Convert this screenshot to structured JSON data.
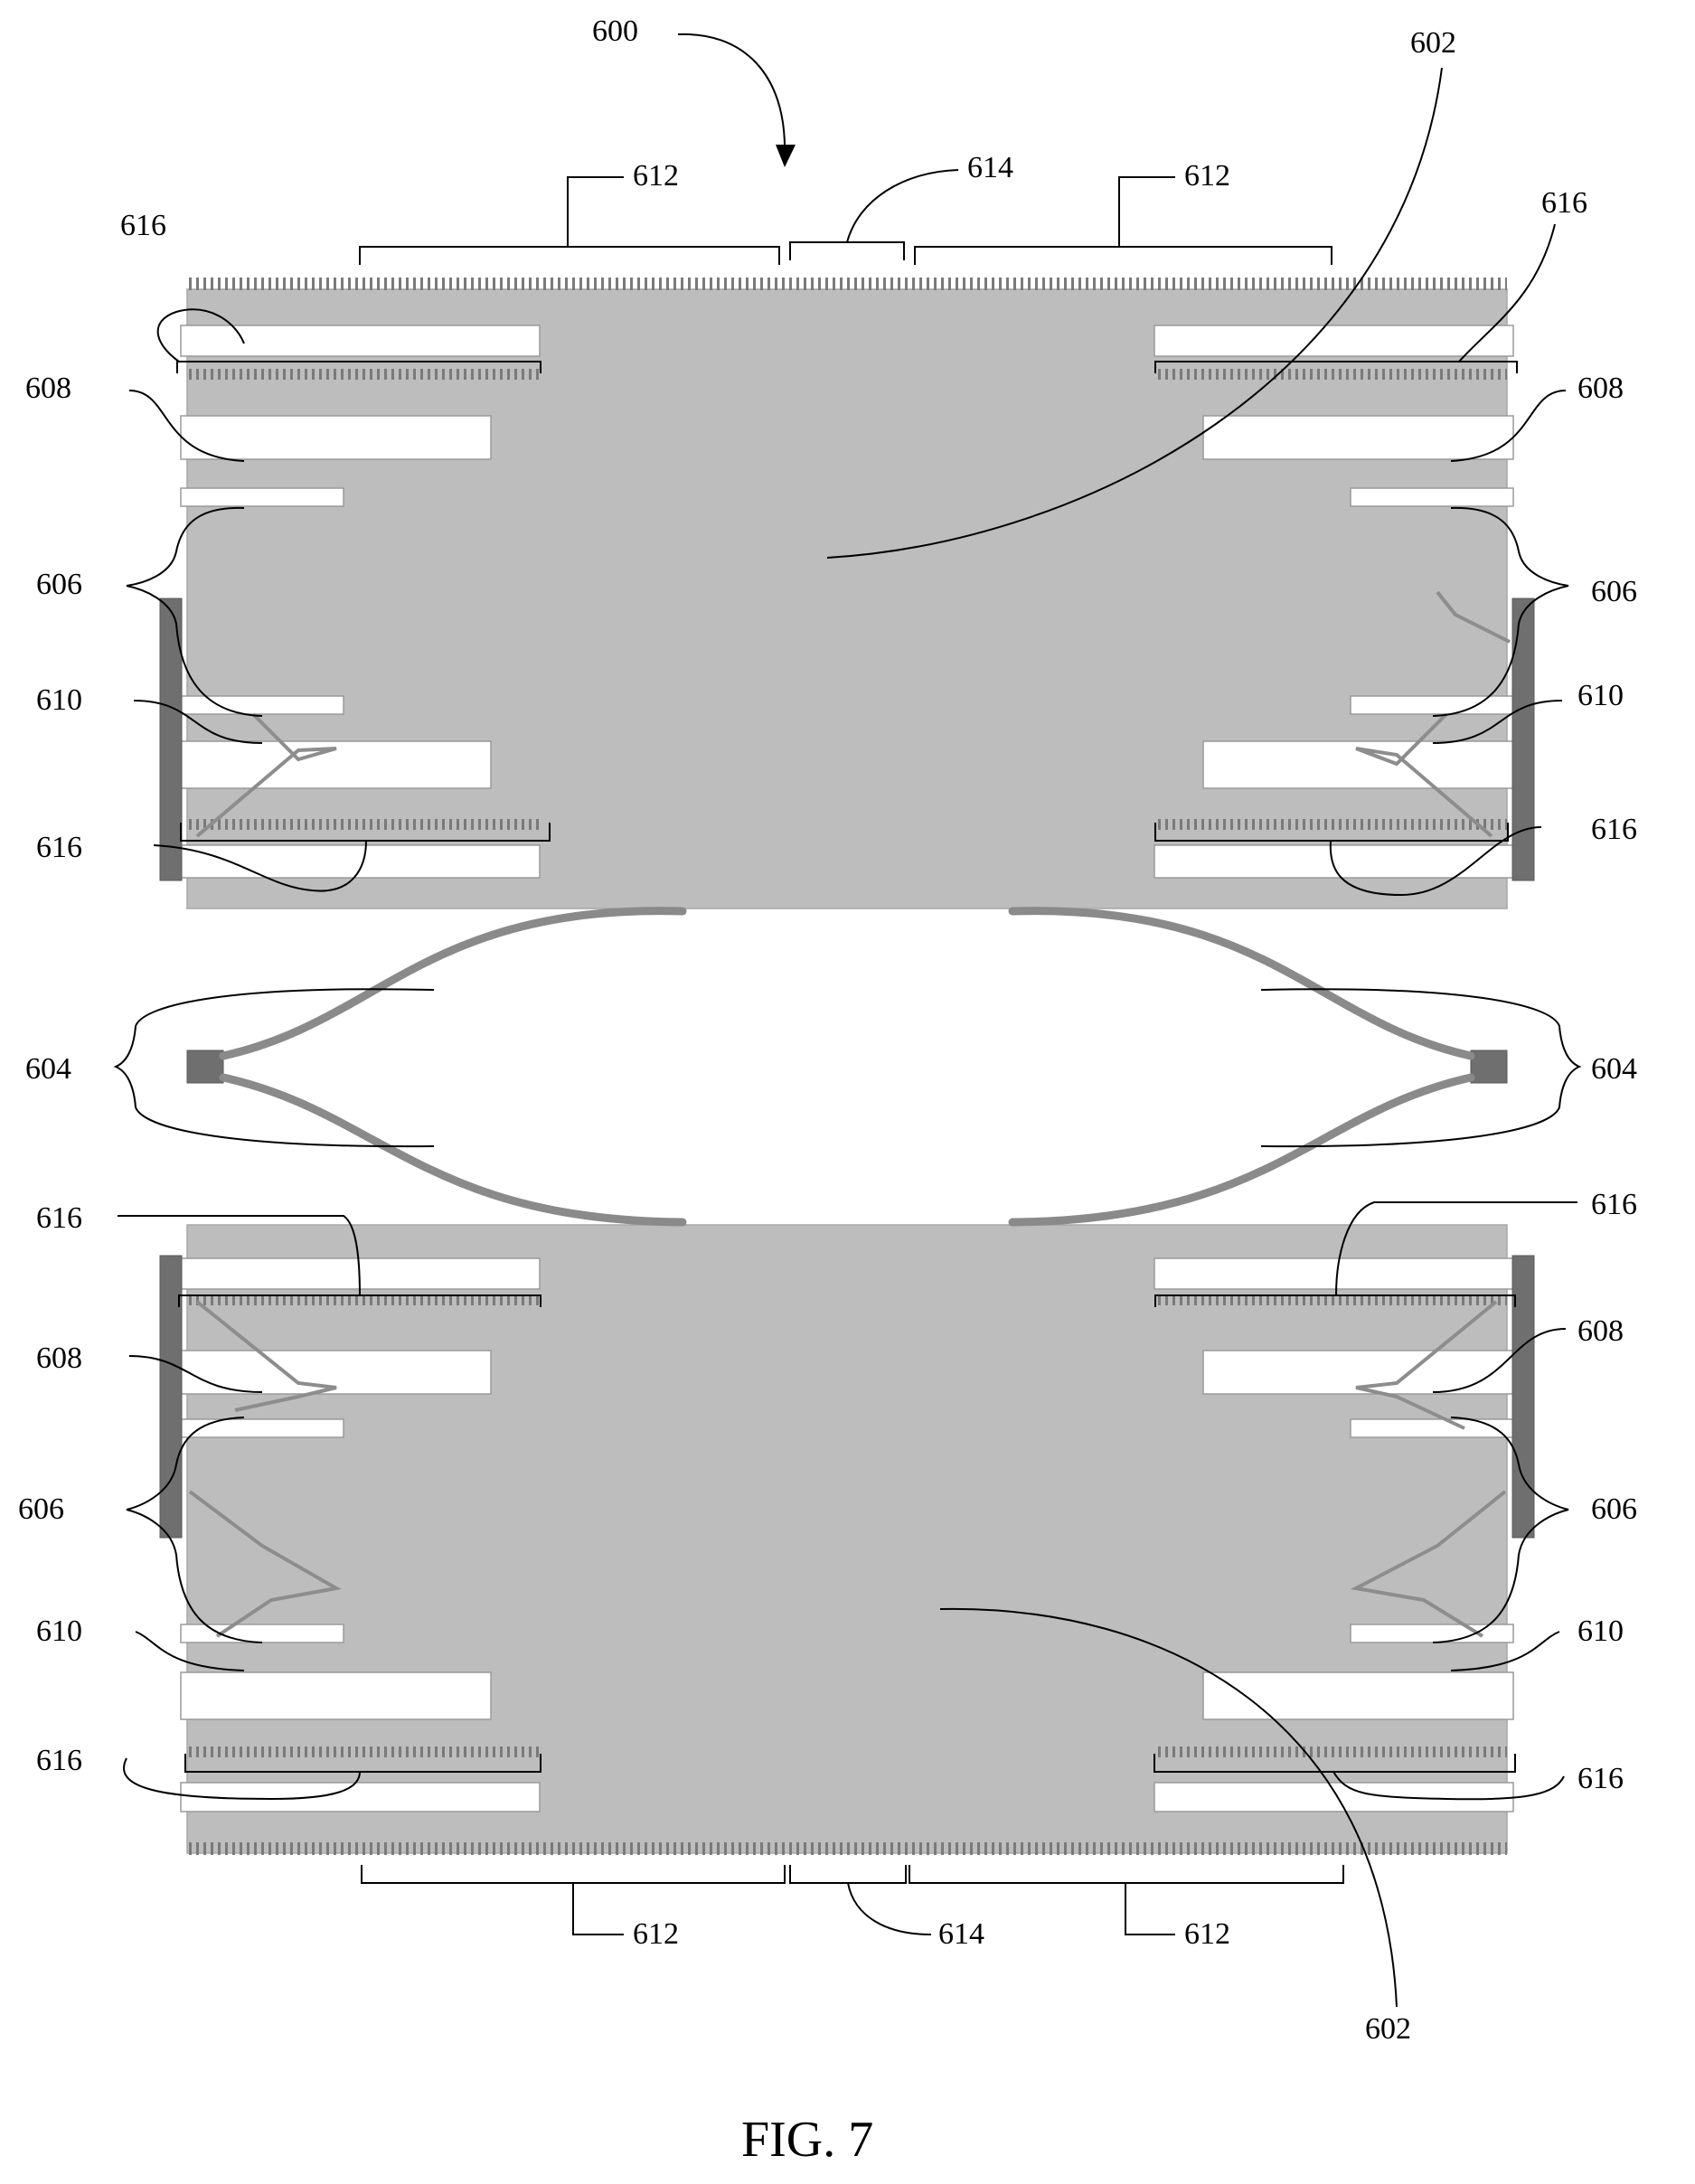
{
  "figure": {
    "caption": "FIG. 7",
    "labels": {
      "ref_600": "600",
      "ref_602_top": "602",
      "ref_602_bottom": "602",
      "ref_604_left": "604",
      "ref_604_right": "604",
      "ref_606_tl": "606",
      "ref_606_tr": "606",
      "ref_606_bl": "606",
      "ref_606_br": "606",
      "ref_608_tl": "608",
      "ref_608_tr": "608",
      "ref_608_bl": "608",
      "ref_608_br": "608",
      "ref_610_tl": "610",
      "ref_610_tr": "610",
      "ref_610_bl": "610",
      "ref_610_br": "610",
      "ref_612_tl": "612",
      "ref_612_tr": "612",
      "ref_612_bl": "612",
      "ref_612_br": "612",
      "ref_614_top": "614",
      "ref_614_bottom": "614",
      "ref_616_1": "616",
      "ref_616_2": "616",
      "ref_616_3": "616",
      "ref_616_4": "616",
      "ref_616_5": "616",
      "ref_616_6": "616",
      "ref_616_7": "616",
      "ref_616_8": "616"
    },
    "colors": {
      "plate": "#bdbdbd",
      "dark_bar": "#6f6f6f",
      "slot": "#ffffff",
      "lines": "#000000"
    }
  }
}
